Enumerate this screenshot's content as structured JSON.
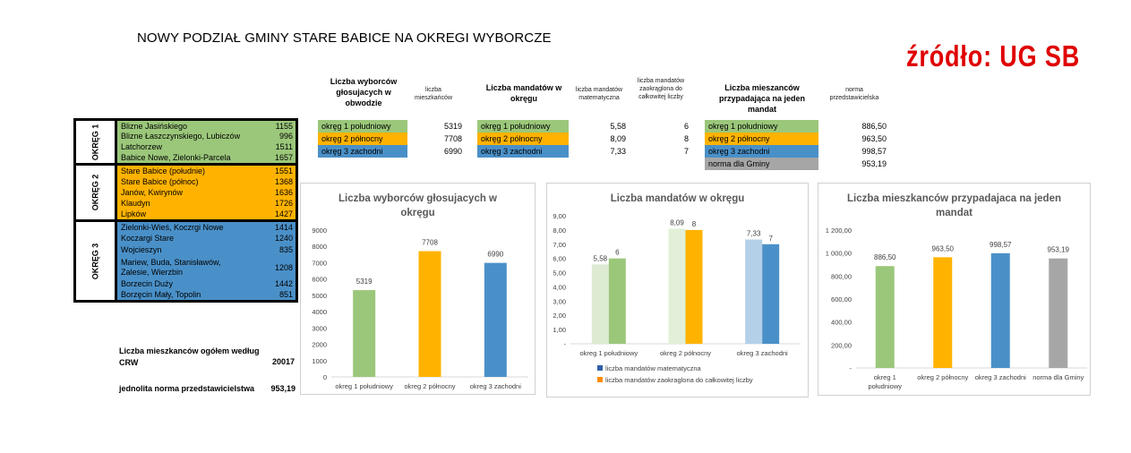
{
  "title": "NOWY PODZIAŁ GMINY STARE BABICE NA OKREGI WYBORCZE",
  "source": "źródło: UG SB",
  "colors": {
    "green": "#9bc77a",
    "orange": "#ffb300",
    "blue": "#4a90c8",
    "grey": "#a6a6a6"
  },
  "districts": [
    {
      "label": "OKRĘG 1",
      "color": "green",
      "rows": [
        {
          "name": "Blizne Jasińskiego",
          "value": "1155"
        },
        {
          "name": "Blizne Łaszczynskiego, Lubiczów",
          "value": "996"
        },
        {
          "name": "Latchorzew",
          "value": "1511"
        },
        {
          "name": "Babice Nowe, Zielonki-Parcela",
          "value": "1657"
        }
      ]
    },
    {
      "label": "OKRĘG 2",
      "color": "orange",
      "rows": [
        {
          "name": "Stare Babice (południe)",
          "value": "1551"
        },
        {
          "name": "Stare Babice (północ)",
          "value": "1368"
        },
        {
          "name": "Janów, Kwirynów",
          "value": "1636"
        },
        {
          "name": "Klaudyn",
          "value": "1726"
        },
        {
          "name": "Lipków",
          "value": "1427"
        }
      ]
    },
    {
      "label": "OKRĘG 3",
      "color": "blue",
      "rows": [
        {
          "name": "Zielonki-Wieś, Koczrgi Nowe",
          "value": "1414"
        },
        {
          "name": "Koczargi Stare",
          "value": "1240"
        },
        {
          "name": "Wojcieszyn",
          "value": "835"
        },
        {
          "name": "Mariew, Buda, Stanisławów, Zalesie, Wierzbin",
          "value": "1208"
        },
        {
          "name": "Borzecin Duży",
          "value": "1442"
        },
        {
          "name": "Borzęcin Mały, Topolin",
          "value": "851"
        }
      ]
    }
  ],
  "footer": {
    "residents_label": "Liczba mieszkanców ogółem według CRW",
    "residents_value": "20017",
    "norm_label": "jednolita norma przedstawicielstwa",
    "norm_value": "953,19"
  },
  "table_voters": {
    "header": "Liczba wyborców głosujacych w obwodzie",
    "subheader": "liczba mieszkańców",
    "rows": [
      {
        "name": "okręg 1 południowy",
        "value": "5319",
        "color": "green"
      },
      {
        "name": "okręg 2 północny",
        "value": "7708",
        "color": "orange"
      },
      {
        "name": "okręg 3 zachodni",
        "value": "6990",
        "color": "blue"
      }
    ]
  },
  "table_mandates": {
    "header": "Liczba mandatów w okręgu",
    "subheader1": "liczba mandatów matematyczna",
    "subheader2": "liczba mandatów zaokrąglona do całkowitej liczby",
    "rows": [
      {
        "name": "okręg 1 południowy",
        "math": "5,58",
        "rounded": "6",
        "color": "green"
      },
      {
        "name": "okręg 2 północny",
        "math": "8,09",
        "rounded": "8",
        "color": "orange"
      },
      {
        "name": "okręg 3 zachodni",
        "math": "7,33",
        "rounded": "7",
        "color": "blue"
      }
    ]
  },
  "table_norm": {
    "header": "Liczba mieszanców przypadająca na jeden mandat",
    "subheader": "norma przedstawicielska",
    "rows": [
      {
        "name": "okręg 1 południowy",
        "value": "886,50",
        "color": "green"
      },
      {
        "name": "okręg 2 północny",
        "value": "963,50",
        "color": "orange"
      },
      {
        "name": "okręg 3 zachodni",
        "value": "998,57",
        "color": "blue"
      },
      {
        "name": "norma dla Gminy",
        "value": "953,19",
        "color": "grey"
      }
    ]
  },
  "chart_data": [
    {
      "type": "bar",
      "title": "Liczba wyborców głosujacych w okręgu",
      "categories": [
        "okreg 1 południowy",
        "okreg 2 północny",
        "okreg 3 zachodni"
      ],
      "values": [
        5319,
        7708,
        6990
      ],
      "labels": [
        "5319",
        "7708",
        "6990"
      ],
      "colors": [
        "#9bc77a",
        "#ffb300",
        "#4a90c8"
      ],
      "ylim": [
        0,
        9000
      ],
      "yticks": [
        "0",
        "1000",
        "2000",
        "3000",
        "4000",
        "5000",
        "6000",
        "7000",
        "8000",
        "9000"
      ],
      "grid": false
    },
    {
      "type": "bar",
      "title": "Liczba mandatów w okręgu",
      "categories": [
        "okreg 1 południowy",
        "okreg 2 północny",
        "okreg 3 zachodni"
      ],
      "series": [
        {
          "name": "liczba mandatów matematyczna",
          "values": [
            5.58,
            8.09,
            7.33
          ],
          "labels": [
            "5,58",
            "8,09",
            "7,33"
          ],
          "colors": [
            "#dcebd2",
            "#e2f0d9",
            "#b4d0e8"
          ],
          "legend_color": "#2f5fa8"
        },
        {
          "name": "liczba mandatów zaokraglona do całkowitej liczby",
          "values": [
            6,
            8,
            7
          ],
          "labels": [
            "6",
            "8",
            "7"
          ],
          "colors": [
            "#9bc77a",
            "#ffb300",
            "#4a90c8"
          ],
          "legend_color": "#ff8c00"
        }
      ],
      "ylim": [
        0,
        9
      ],
      "yticks": [
        "-",
        "1,00",
        "2,00",
        "3,00",
        "4,00",
        "5,00",
        "6,00",
        "7,00",
        "8,00",
        "9,00"
      ],
      "grid": false
    },
    {
      "type": "bar",
      "title": "Liczba mieszkanców przypadajaca na jeden mandat",
      "categories": [
        "okreg 1 południowy",
        "okreg 2 północny",
        "okreg 3 zachodni",
        "norma dla Gminy"
      ],
      "values": [
        886.5,
        963.5,
        998.57,
        953.19
      ],
      "labels": [
        "886,50",
        "963,50",
        "998,57",
        "953,19"
      ],
      "colors": [
        "#9bc77a",
        "#ffb300",
        "#4a90c8",
        "#a6a6a6"
      ],
      "ylim": [
        0,
        1200
      ],
      "yticks": [
        "-",
        "200,00",
        "400,00",
        "600,00",
        "800,00",
        "1 000,00",
        "1 200,00"
      ],
      "grid": false
    }
  ]
}
